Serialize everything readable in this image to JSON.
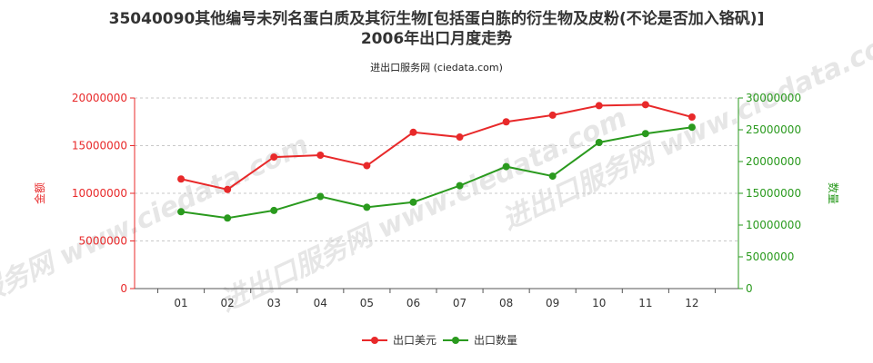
{
  "chart_data": {
    "type": "line",
    "title": "35040090其他编号未列名蛋白质及其衍生物[包括蛋白胨的衍生物及皮粉(不论是否加入铬矾)]",
    "subtitle": "2006年出口月度走势",
    "source": "进出口服务网 (ciedata.com)",
    "watermark": "进出口服务网 www.ciedata.com",
    "categories": [
      "01",
      "02",
      "03",
      "04",
      "05",
      "06",
      "07",
      "08",
      "09",
      "10",
      "11",
      "12"
    ],
    "ylabel_left": "金额",
    "ylabel_right": "数量",
    "ylim_left": [
      0,
      20000000
    ],
    "ylim_right": [
      0,
      30000000
    ],
    "yticks_left": [
      "0",
      "5000000",
      "10000000",
      "15000000",
      "20000000"
    ],
    "yticks_right": [
      "0",
      "5000000",
      "10000000",
      "15000000",
      "20000000",
      "25000000",
      "30000000"
    ],
    "grid": "horizontal dashed",
    "legend_position": "bottom-center",
    "series": [
      {
        "name": "出口美元",
        "axis": "left",
        "color": "#e8292a",
        "values": [
          11500000,
          10400000,
          13800000,
          14000000,
          12900000,
          16400000,
          15900000,
          17500000,
          18200000,
          19200000,
          19300000,
          18000000
        ]
      },
      {
        "name": "出口数量",
        "axis": "right",
        "color": "#2a9a1e",
        "values": [
          12100000,
          11100000,
          12300000,
          14500000,
          12800000,
          13600000,
          16200000,
          19200000,
          17700000,
          23000000,
          24400000,
          25400000
        ]
      }
    ]
  }
}
